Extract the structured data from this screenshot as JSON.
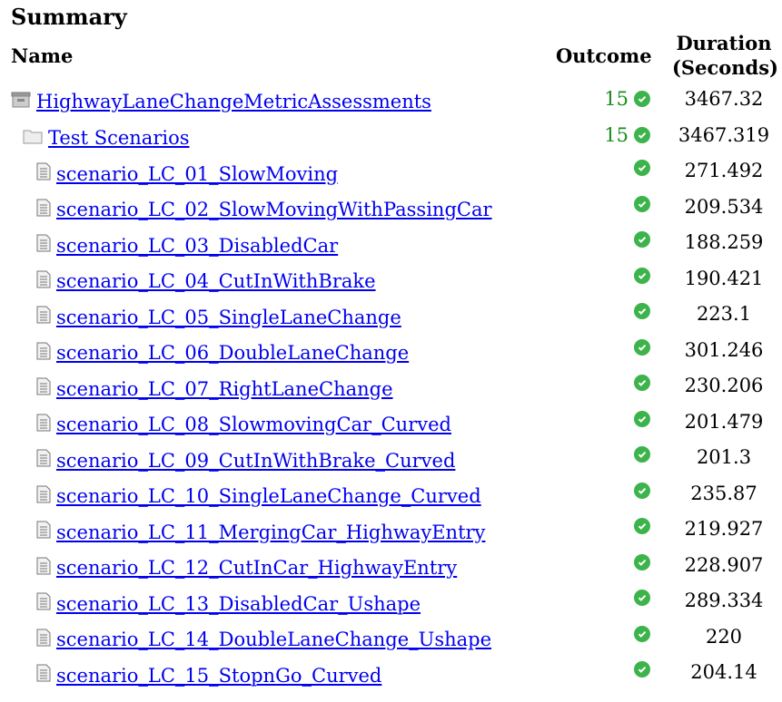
{
  "title": "Summary",
  "headers": {
    "name": "Name",
    "outcome": "Outcome",
    "duration_line1": "Duration",
    "duration_line2": "(Seconds)"
  },
  "colors": {
    "link": "#0000ee",
    "count": "#1e8c1e",
    "pass": "#3cb44b"
  },
  "rows": [
    {
      "name": "HighwayLaneChangeMetricAssessments",
      "icon": "archive-icon",
      "level": 0,
      "count": "15",
      "outcome": "passed",
      "duration": "3467.32"
    },
    {
      "name": "Test Scenarios",
      "icon": "folder-icon",
      "level": 1,
      "count": "15",
      "outcome": "passed",
      "duration": "3467.319"
    },
    {
      "name": "scenario_LC_01_SlowMoving",
      "icon": "document-icon",
      "level": 2,
      "outcome": "passed",
      "duration": "271.492"
    },
    {
      "name": "scenario_LC_02_SlowMovingWithPassingCar",
      "icon": "document-icon",
      "level": 2,
      "outcome": "passed",
      "duration": "209.534"
    },
    {
      "name": "scenario_LC_03_DisabledCar",
      "icon": "document-icon",
      "level": 2,
      "outcome": "passed",
      "duration": "188.259"
    },
    {
      "name": "scenario_LC_04_CutInWithBrake",
      "icon": "document-icon",
      "level": 2,
      "outcome": "passed",
      "duration": "190.421"
    },
    {
      "name": "scenario_LC_05_SingleLaneChange",
      "icon": "document-icon",
      "level": 2,
      "outcome": "passed",
      "duration": "223.1"
    },
    {
      "name": "scenario_LC_06_DoubleLaneChange",
      "icon": "document-icon",
      "level": 2,
      "outcome": "passed",
      "duration": "301.246"
    },
    {
      "name": "scenario_LC_07_RightLaneChange",
      "icon": "document-icon",
      "level": 2,
      "outcome": "passed",
      "duration": "230.206"
    },
    {
      "name": "scenario_LC_08_SlowmovingCar_Curved",
      "icon": "document-icon",
      "level": 2,
      "outcome": "passed",
      "duration": "201.479"
    },
    {
      "name": "scenario_LC_09_CutInWithBrake_Curved",
      "icon": "document-icon",
      "level": 2,
      "outcome": "passed",
      "duration": "201.3"
    },
    {
      "name": "scenario_LC_10_SingleLaneChange_Curved",
      "icon": "document-icon",
      "level": 2,
      "outcome": "passed",
      "duration": "235.87"
    },
    {
      "name": "scenario_LC_11_MergingCar_HighwayEntry",
      "icon": "document-icon",
      "level": 2,
      "outcome": "passed",
      "duration": "219.927"
    },
    {
      "name": "scenario_LC_12_CutInCar_HighwayEntry",
      "icon": "document-icon",
      "level": 2,
      "outcome": "passed",
      "duration": "228.907"
    },
    {
      "name": "scenario_LC_13_DisabledCar_Ushape",
      "icon": "document-icon",
      "level": 2,
      "outcome": "passed",
      "duration": "289.334"
    },
    {
      "name": "scenario_LC_14_DoubleLaneChange_Ushape",
      "icon": "document-icon",
      "level": 2,
      "outcome": "passed",
      "duration": "220"
    },
    {
      "name": "scenario_LC_15_StopnGo_Curved",
      "icon": "document-icon",
      "level": 2,
      "outcome": "passed",
      "duration": "204.14"
    }
  ]
}
